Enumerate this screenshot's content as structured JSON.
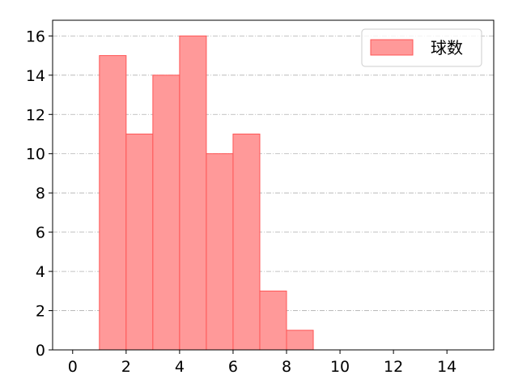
{
  "chart_data": {
    "type": "bar",
    "subtype": "histogram",
    "bins": [
      [
        1,
        2
      ],
      [
        2,
        3
      ],
      [
        3,
        4
      ],
      [
        4,
        5
      ],
      [
        5,
        6
      ],
      [
        6,
        7
      ],
      [
        7,
        8
      ],
      [
        8,
        9
      ]
    ],
    "series": [
      {
        "name": "球数",
        "values": [
          15,
          11,
          14,
          16,
          10,
          11,
          3,
          1
        ]
      }
    ],
    "title": "",
    "xlabel": "",
    "ylabel": "",
    "xlim": [
      -0.75,
      15.75
    ],
    "ylim": [
      0,
      16.8
    ],
    "xticks": [
      0,
      2,
      4,
      6,
      8,
      10,
      12,
      14
    ],
    "yticks": [
      0,
      2,
      4,
      6,
      8,
      10,
      12,
      14,
      16
    ],
    "grid": {
      "axis": "y",
      "style": "dash-dot"
    },
    "legend": "top-right",
    "colors": {
      "fill": "#ff9999",
      "edge": "#ff5555",
      "grid": "#b0b0b0"
    }
  }
}
